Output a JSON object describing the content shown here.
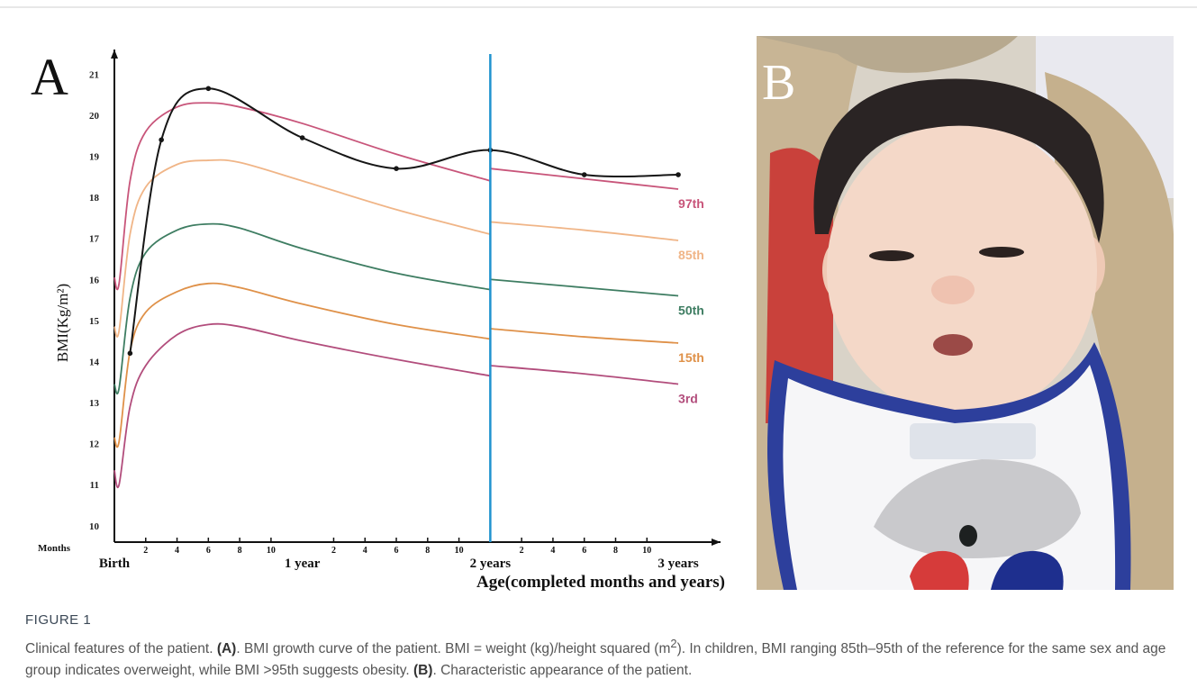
{
  "panels": {
    "a": "A",
    "b": "B"
  },
  "chart_data": {
    "type": "line",
    "y_label": "BMI(Kg/m²)",
    "x_label": "Age(completed months and years)",
    "x_unit_label": "Months",
    "xlim": [
      0,
      38.7
    ],
    "ylim": [
      9.6,
      21.6
    ],
    "yticks": [
      10,
      11,
      12,
      13,
      14,
      15,
      16,
      17,
      18,
      19,
      20,
      21
    ],
    "xticks": [
      2,
      4,
      6,
      8,
      10,
      {
        "value": 14,
        "label": "2"
      },
      {
        "value": 16,
        "label": "4"
      },
      {
        "value": 18,
        "label": "6"
      },
      {
        "value": 20,
        "label": "8"
      },
      {
        "value": 22,
        "label": "10"
      },
      {
        "value": 26,
        "label": "2"
      },
      {
        "value": 28,
        "label": "4"
      },
      {
        "value": 30,
        "label": "6"
      },
      {
        "value": 32,
        "label": "8"
      },
      {
        "value": 34,
        "label": "10"
      }
    ],
    "x_major_labels": [
      {
        "value": 0,
        "label": "Birth"
      },
      {
        "value": 12,
        "label": "1 year"
      },
      {
        "value": 24,
        "label": "2 years"
      },
      {
        "value": 36,
        "label": "3 years"
      }
    ],
    "divider_x": 24,
    "divider_color": "#1f93cf",
    "grid": false,
    "x": [
      0,
      0.3,
      1,
      2,
      4,
      6,
      8,
      12,
      18,
      24,
      24,
      30,
      36
    ],
    "series": [
      {
        "name": "97th",
        "color": "#c8557a",
        "values": [
          16.05,
          15.9,
          18.4,
          19.6,
          20.2,
          20.3,
          20.2,
          19.8,
          19.05,
          18.4,
          18.7,
          18.45,
          18.2
        ]
      },
      {
        "name": "85th",
        "color": "#f0b587",
        "values": [
          14.85,
          14.75,
          17.1,
          18.25,
          18.8,
          18.9,
          18.85,
          18.4,
          17.7,
          17.1,
          17.4,
          17.2,
          16.95
        ]
      },
      {
        "name": "50th",
        "color": "#3e7d62",
        "values": [
          13.45,
          13.35,
          15.55,
          16.65,
          17.2,
          17.35,
          17.25,
          16.75,
          16.15,
          15.75,
          16.0,
          15.8,
          15.6
        ]
      },
      {
        "name": "15th",
        "color": "#df9149",
        "values": [
          12.15,
          12.05,
          14.25,
          15.2,
          15.7,
          15.9,
          15.8,
          15.4,
          14.9,
          14.55,
          14.8,
          14.6,
          14.45
        ]
      },
      {
        "name": "3rd",
        "color": "#b24d7c",
        "values": [
          11.35,
          11.0,
          12.9,
          13.9,
          14.65,
          14.9,
          14.85,
          14.5,
          14.05,
          13.65,
          13.9,
          13.7,
          13.45
        ]
      },
      {
        "color": "#161616",
        "markers": true,
        "x": [
          1,
          3,
          6,
          12,
          18,
          24,
          30,
          36
        ],
        "values": [
          14.2,
          19.4,
          20.65,
          19.45,
          18.7,
          19.15,
          18.55,
          18.55
        ]
      }
    ]
  },
  "figure": {
    "label": "FIGURE 1",
    "caption": [
      "Clinical features of the patient. ",
      "(A)",
      ". BMI growth curve of the patient. BMI = weight (kg)/height squared (m",
      "2",
      "). In children, BMI ranging 85th–95th of the reference for the same sex and age group indicates overweight, while BMI >95th suggests obesity. ",
      "(B)",
      ". Characteristic appearance of the patient."
    ]
  }
}
